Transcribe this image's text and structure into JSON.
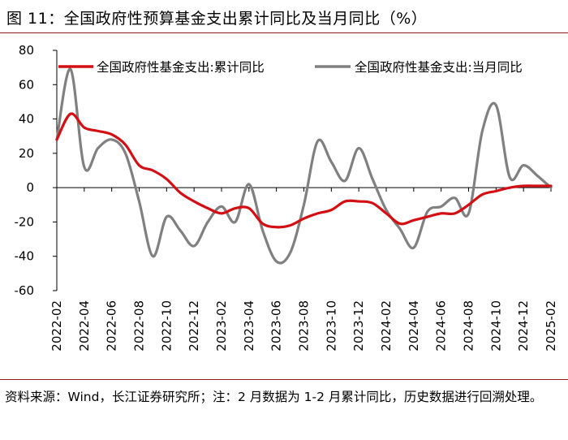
{
  "title": "图 11：全国政府性预算基金支出累计同比及当月同比（%）",
  "source": "资料来源：Wind，长江证券研究所；注：2 月数据为 1-2 月累计同比，历史数据进行回溯处理。",
  "colors": {
    "cumulative": "#d40f14",
    "monthly": "#808080",
    "rule": "#8a1c1c"
  },
  "chart_data": {
    "type": "line",
    "title": "全国政府性预算基金支出累计同比及当月同比（%）",
    "xlabel": "",
    "ylabel": "",
    "ylim": [
      -60,
      80
    ],
    "yticks": [
      80,
      60,
      40,
      20,
      0,
      -20,
      -40,
      -60
    ],
    "x": [
      "2022-02",
      "2022-03",
      "2022-04",
      "2022-05",
      "2022-06",
      "2022-07",
      "2022-08",
      "2022-09",
      "2022-10",
      "2022-11",
      "2022-12",
      "2023-01",
      "2023-02",
      "2023-03",
      "2023-04",
      "2023-05",
      "2023-06",
      "2023-07",
      "2023-08",
      "2023-09",
      "2023-10",
      "2023-11",
      "2023-12",
      "2024-01",
      "2024-02",
      "2024-03",
      "2024-04",
      "2024-05",
      "2024-06",
      "2024-07",
      "2024-08",
      "2024-09",
      "2024-10",
      "2024-11",
      "2024-12",
      "2025-01",
      "2025-02"
    ],
    "xtick_labels": [
      "2022-02",
      "2022-04",
      "2022-06",
      "2022-08",
      "2022-10",
      "2022-12",
      "2023-02",
      "2023-04",
      "2023-06",
      "2023-08",
      "2023-10",
      "2023-12",
      "2024-02",
      "2024-04",
      "2024-06",
      "2024-08",
      "2024-10",
      "2024-12",
      "2025-02"
    ],
    "series": [
      {
        "name": "全国政府性基金支出:累计同比",
        "color": "#d40f14",
        "values": [
          28,
          43,
          35,
          33,
          31,
          25,
          13,
          10,
          5,
          -3,
          -8,
          -12,
          -15,
          -12,
          -12,
          -21,
          -23,
          -22,
          -18,
          -15,
          -13,
          -8,
          -8,
          -9,
          -15,
          -21,
          -19,
          -17,
          -15,
          -15,
          -10,
          -4,
          -2,
          0,
          1,
          1,
          1
        ]
      },
      {
        "name": "全国政府性基金支出:当月同比",
        "color": "#808080",
        "values": [
          28,
          69,
          12,
          23,
          28,
          20,
          -8,
          -40,
          -17,
          -25,
          -34,
          -20,
          -11,
          -20,
          2,
          -25,
          -43,
          -38,
          -10,
          27,
          15,
          4,
          23,
          5,
          -13,
          -24,
          -35,
          -14,
          -11,
          -6,
          -15,
          33,
          48,
          6,
          13,
          7,
          0
        ]
      }
    ]
  }
}
